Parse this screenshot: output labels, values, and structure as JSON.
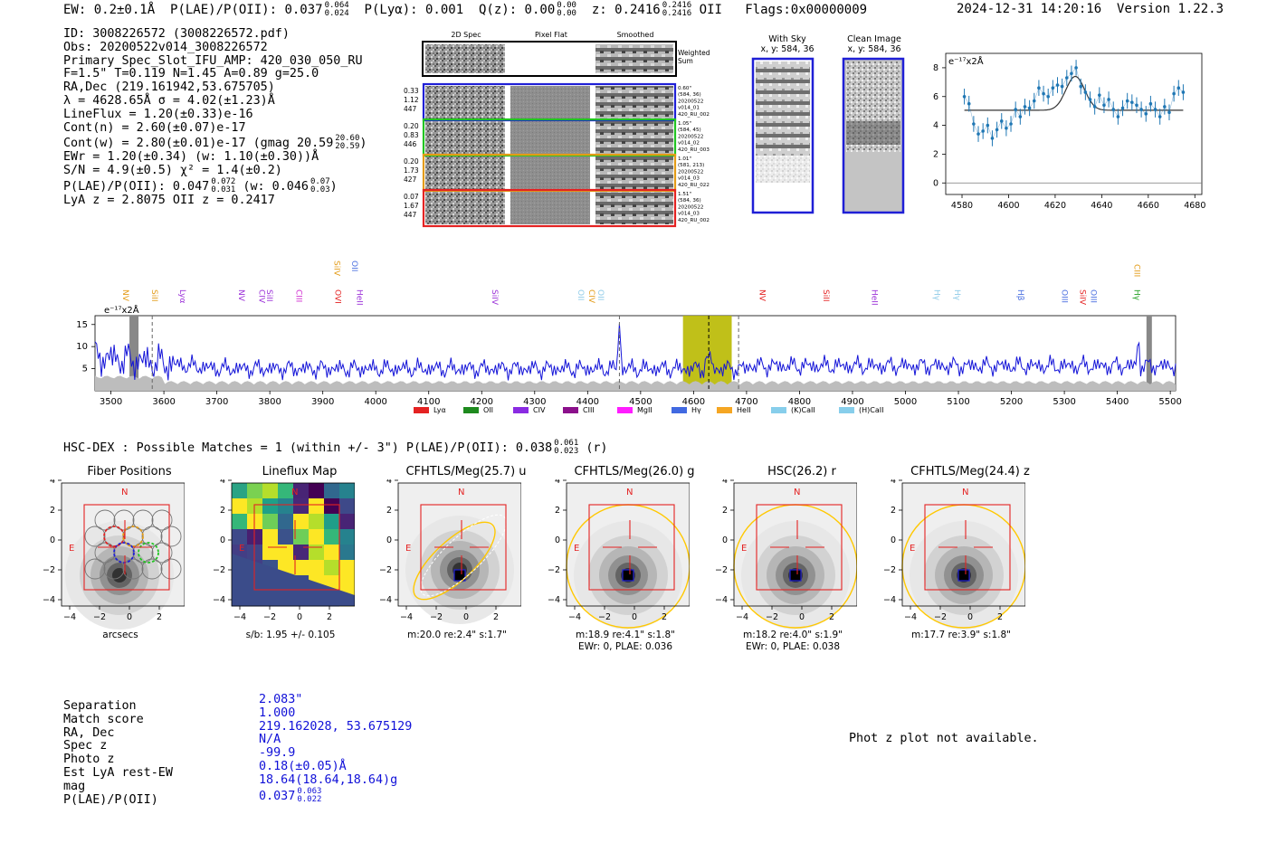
{
  "header": {
    "ew": "EW: 0.2±0.1Å",
    "plae_label": "P(LAE)/P(OII): 0.037",
    "plae_up": "0.064",
    "plae_down": "0.024",
    "plya": "P(Lyα): 0.001",
    "qz_label": "Q(z): 0.00",
    "qz_up": "0.00",
    "qz_down": "0.00",
    "z_label": "z: 0.2416",
    "z_up": "0.2416",
    "z_down": "0.2416",
    "z_tag": "OII",
    "flags": "Flags:0x00000009",
    "timestamp": "2024-12-31 14:20:16",
    "version": "Version 1.22.3"
  },
  "info": {
    "id": "ID: 3008226572 (3008226572.pdf)",
    "obs": "Obs: 20200522v014_3008226572",
    "primary": "Primary Spec_Slot_IFU_AMP: 420_030_050_RU",
    "fiber": "F=1.5\"  T=0.119  N=1.45  A=0.89  g=25.0",
    "radec": "RA,Dec (219.161942,53.675705)",
    "lambda": "λ = 4628.65Å  σ = 4.02(±1.23)Å",
    "lineflux": "LineFlux = 1.20(±0.33)e-16",
    "contn": "Cont(n) = 2.60(±0.07)e-17",
    "contw": "Cont(w) = 2.80(±0.01)e-17 (gmag 20.59",
    "contw_up": "20.60",
    "contw_down": "20.59",
    "contw_close": ")",
    "ewr": "EWr = 1.20(±0.34) (w: 1.10(±0.30))Å",
    "sn": "S/N = 4.9(±0.5)  χ² = 1.4(±0.2)",
    "plae": "P(LAE)/P(OII): 0.047",
    "plae_up": "0.072",
    "plae_down": "0.031",
    "plae_w": "(w: 0.046",
    "plae_w_up": "0.07",
    "plae_w_down": "0.03",
    "plae_w_close": ")",
    "lyaz": "LyA z = 2.8075  OII z = 0.2417"
  },
  "cutouts_2d": {
    "col_titles": [
      "2D Spec",
      "Pixel Flat",
      "Smoothed"
    ],
    "weighted_sum": [
      "Weighted",
      "Sum"
    ],
    "rows": [
      {
        "left": [
          "0.33",
          "1.12",
          "447"
        ],
        "right": [
          "0.60\"",
          "(584, 36)",
          "20200522",
          "v014_01",
          "420_RU_002"
        ],
        "color": "#1f1fd6"
      },
      {
        "left": [
          "0.20",
          "0.83",
          "446"
        ],
        "right": [
          "1.05\"",
          "(584, 45)",
          "20200522",
          "v014_02",
          "420_RU_003"
        ],
        "color": "#22c422"
      },
      {
        "left": [
          "0.20",
          "1.73",
          "427"
        ],
        "right": [
          "1.01\"",
          "(581, 213)",
          "20200522",
          "v014_03",
          "420_RU_022"
        ],
        "color": "#e39b17"
      },
      {
        "left": [
          "0.07",
          "1.67",
          "447"
        ],
        "right": [
          "1.51\"",
          "(584, 36)",
          "20200522",
          "v014_03",
          "420_RU_002"
        ],
        "color": "#e42222"
      }
    ]
  },
  "sky": {
    "with_sky_title": "With Sky",
    "with_sky_xy": "x, y: 584, 36",
    "clean_title": "Clean Image",
    "clean_xy": "x, y: 584, 36"
  },
  "zoom_chart": {
    "unit_label": "e⁻¹⁷x2Å",
    "x_ticks": [
      "4580",
      "4600",
      "4620",
      "4640",
      "4660",
      "4680"
    ],
    "y_ticks": [
      "0",
      "2",
      "4",
      "6",
      "8"
    ]
  },
  "spectrum": {
    "unit_label": "e⁻¹⁷x2Å",
    "x_ticks": [
      "3500",
      "3600",
      "3700",
      "3800",
      "3900",
      "4000",
      "4100",
      "4200",
      "4300",
      "4400",
      "4500",
      "4600",
      "4700",
      "4800",
      "4900",
      "5000",
      "5100",
      "5200",
      "5300",
      "5400",
      "5500"
    ],
    "y_ticks": [
      "5",
      "10",
      "15"
    ],
    "line_labels": [
      {
        "t": "NV",
        "c": "#e39b17",
        "w": 3523,
        "row": 2
      },
      {
        "t": "SiII",
        "c": "#e39b17",
        "w": 3578,
        "row": 2
      },
      {
        "t": "Lyα",
        "c": "#9b30d8",
        "w": 3631,
        "row": 2
      },
      {
        "t": "NV",
        "c": "#9b30d8",
        "w": 3742,
        "row": 2
      },
      {
        "t": "CIV",
        "c": "#9b30d8",
        "w": 3780,
        "row": 2
      },
      {
        "t": "SiII",
        "c": "#9b30d8",
        "w": 3795,
        "row": 2
      },
      {
        "t": "CIII",
        "c": "#d02ad0",
        "w": 3850,
        "row": 2
      },
      {
        "t": "SiIV",
        "c": "#e39b17",
        "w": 3922,
        "row": 0
      },
      {
        "t": "OII",
        "c": "#4a6fe0",
        "w": 3955,
        "row": 0
      },
      {
        "t": "OVI",
        "c": "#e42222",
        "w": 3924,
        "row": 2
      },
      {
        "t": "HeII",
        "c": "#9b30d8",
        "w": 3965,
        "row": 2
      },
      {
        "t": "SiIV",
        "c": "#9b30d8",
        "w": 4220,
        "row": 2
      },
      {
        "t": "OII",
        "c": "#8ecbe8",
        "w": 4382,
        "row": 2
      },
      {
        "t": "CIV",
        "c": "#e39b17",
        "w": 4403,
        "row": 2
      },
      {
        "t": "OII",
        "c": "#8ecbe8",
        "w": 4420,
        "row": 2
      },
      {
        "t": "NV",
        "c": "#e42222",
        "w": 4725,
        "row": 2
      },
      {
        "t": "SiII",
        "c": "#e42222",
        "w": 4845,
        "row": 2
      },
      {
        "t": "HeII",
        "c": "#9b30d8",
        "w": 4937,
        "row": 2
      },
      {
        "t": "Hγ",
        "c": "#8ecbe8",
        "w": 5055,
        "row": 2
      },
      {
        "t": "Hγ",
        "c": "#8ecbe8",
        "w": 5093,
        "row": 2
      },
      {
        "t": "Hβ",
        "c": "#4a6fe0",
        "w": 5213,
        "row": 2
      },
      {
        "t": "OIII",
        "c": "#4a6fe0",
        "w": 5296,
        "row": 2
      },
      {
        "t": "SiIV",
        "c": "#e42222",
        "w": 5330,
        "row": 2
      },
      {
        "t": "OIII",
        "c": "#4a6fe0",
        "w": 5350,
        "row": 2
      },
      {
        "t": "CIII",
        "c": "#e39b17",
        "w": 5432,
        "row": 1
      },
      {
        "t": "Hγ",
        "c": "#22a022",
        "w": 5432,
        "row": 2
      }
    ],
    "legend": [
      {
        "label": "Lyα",
        "color": "#e42222"
      },
      {
        "label": "OII",
        "color": "#1e8a1e"
      },
      {
        "label": "CIV",
        "color": "#8a2be2"
      },
      {
        "label": "CIII",
        "color": "#8b108b"
      },
      {
        "label": "MgII",
        "color": "#ff1dff"
      },
      {
        "label": "Hγ",
        "color": "#4169e1"
      },
      {
        "label": "HeII",
        "color": "#f5a623"
      },
      {
        "label": "(K)CaII",
        "color": "#87ceeb"
      },
      {
        "label": "(H)CaII",
        "color": "#87ceeb"
      }
    ]
  },
  "hsc": {
    "title": "HSC-DEX : Possible Matches = 1 (within +/- 3\")  P(LAE)/P(OII): 0.038",
    "up": "0.061",
    "down": "0.023",
    "band": "(r)"
  },
  "cutouts": [
    {
      "title": "Fiber Positions",
      "caption1": "arcsecs",
      "caption2": ""
    },
    {
      "title": "Lineflux Map",
      "caption1": "s/b: 1.95 +/- 0.105",
      "caption2": ""
    },
    {
      "title": "CFHTLS/Meg(25.7) u",
      "caption1": "m:20.0  re:2.4\"  s:1.7\"",
      "caption2": ""
    },
    {
      "title": "CFHTLS/Meg(26.0) g",
      "caption1": "m:18.9  re:4.1\"  s:1.8\"",
      "caption2": "EWr: 0, PLAE: 0.036"
    },
    {
      "title": "HSC(26.2) r",
      "caption1": "m:18.2  re:4.0\"  s:1.9\"",
      "caption2": "EWr: 0, PLAE: 0.038"
    },
    {
      "title": "CFHTLS/Meg(24.4) z",
      "caption1": "m:17.7  re:3.9\"  s:1.8\"",
      "caption2": ""
    }
  ],
  "cutout_axis": {
    "ticks": [
      "−4",
      "−2",
      "0",
      "2",
      "4"
    ],
    "north": "N",
    "east": "E"
  },
  "match_table": {
    "labels": [
      "Separation",
      "Match score",
      "RA, Dec",
      "Spec z",
      "Photo z",
      "Est LyA rest-EW",
      "mag",
      "P(LAE)/P(OII)"
    ],
    "values": [
      "2.083\"",
      "1.000",
      "219.162028, 53.675129",
      "N/A",
      "-99.9",
      "0.18(±0.05)Å",
      "18.64(18.64,18.64)g",
      "0.037"
    ],
    "plae_up": "0.063",
    "plae_down": "0.022"
  },
  "photz_note": "Phot z plot not available."
}
